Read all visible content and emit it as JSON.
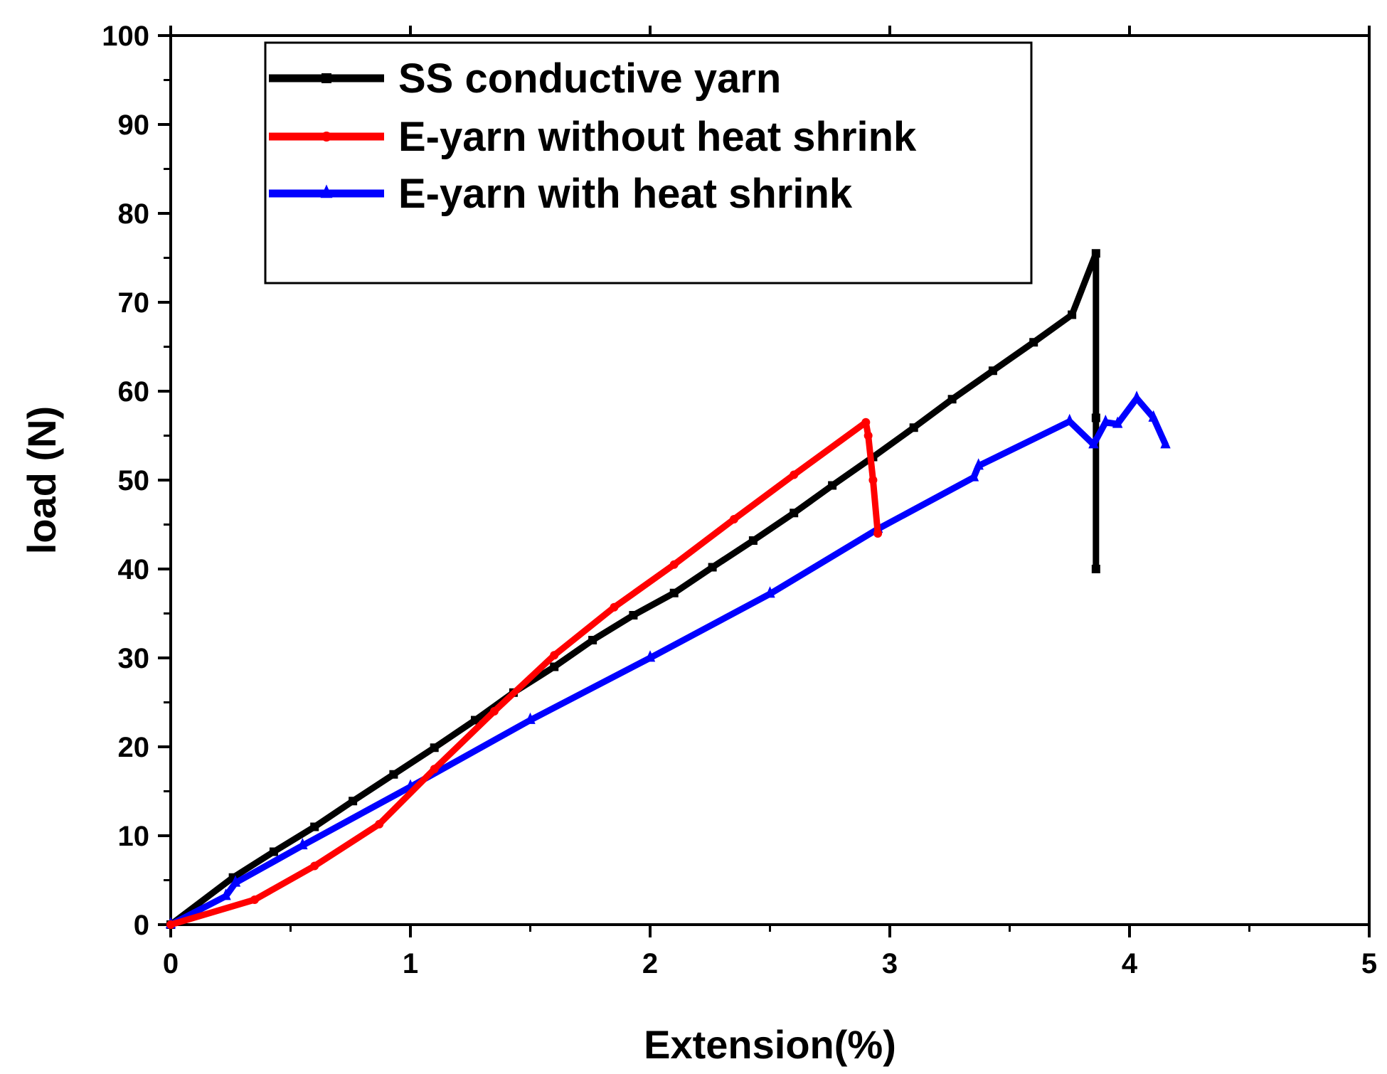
{
  "chart_data": {
    "type": "line",
    "title": "",
    "xlabel": "Extension(%)",
    "ylabel": "load (N)",
    "xlim": [
      0,
      5
    ],
    "ylim": [
      0,
      100
    ],
    "x_ticks": [
      0,
      1,
      2,
      3,
      4,
      5
    ],
    "x_tick_labels": [
      "0",
      "1",
      "2",
      "3",
      "4",
      "5"
    ],
    "y_ticks": [
      0,
      10,
      20,
      30,
      40,
      50,
      60,
      70,
      80,
      90,
      100
    ],
    "y_tick_labels": [
      "0",
      "10",
      "20",
      "30",
      "40",
      "50",
      "60",
      "70",
      "80",
      "90",
      "100"
    ],
    "grid": false,
    "legend_position": "top-left",
    "series": [
      {
        "name": "SS conductive yarn",
        "color": "#000000",
        "marker": "square",
        "x": [
          0,
          0.26,
          0.43,
          0.6,
          0.76,
          0.93,
          1.1,
          1.27,
          1.43,
          1.6,
          1.76,
          1.93,
          2.1,
          2.26,
          2.43,
          2.6,
          2.76,
          2.93,
          3.1,
          3.26,
          3.43,
          3.6,
          3.76,
          3.86,
          3.86,
          3.86
        ],
        "y": [
          0,
          5.3,
          8.2,
          11.0,
          13.9,
          16.9,
          19.9,
          23.0,
          26.1,
          29.0,
          32.0,
          34.8,
          37.3,
          40.2,
          43.2,
          46.3,
          49.4,
          52.6,
          55.9,
          59.1,
          62.3,
          65.5,
          68.6,
          75.5,
          57.0,
          40.0
        ]
      },
      {
        "name": "E-yarn without heat shrink",
        "color": "#ff0000",
        "marker": "circle",
        "x": [
          0,
          0.35,
          0.6,
          0.87,
          1.1,
          1.35,
          1.6,
          1.85,
          2.1,
          2.35,
          2.6,
          2.9,
          2.91,
          2.93,
          2.95
        ],
        "y": [
          0,
          2.8,
          6.6,
          11.3,
          17.5,
          24.0,
          30.3,
          35.7,
          40.5,
          45.6,
          50.6,
          56.5,
          55.0,
          50.0,
          44.0
        ]
      },
      {
        "name": "E-yarn with heat shrink",
        "color": "#0000ff",
        "marker": "triangle",
        "x": [
          0,
          0.23,
          0.27,
          0.55,
          1.0,
          1.5,
          2.0,
          2.5,
          2.95,
          3.35,
          3.37,
          3.75,
          3.85,
          3.9,
          3.95,
          4.03,
          4.1,
          4.15
        ],
        "y": [
          0,
          3.2,
          4.7,
          8.9,
          15.5,
          23.0,
          30.0,
          37.2,
          44.5,
          50.3,
          51.6,
          56.6,
          54.0,
          56.5,
          56.3,
          59.2,
          57.0,
          54.0
        ]
      }
    ]
  }
}
